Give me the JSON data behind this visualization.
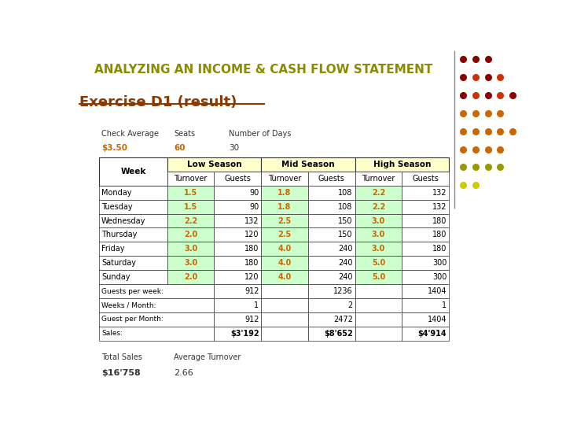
{
  "title": "ANALYZING AN INCOME & CASH FLOW STATEMENT",
  "subtitle": "Exercise D1 (result)",
  "title_color": "#8B8B00",
  "subtitle_color": "#8B3A00",
  "bg_color": "#FFFFFF",
  "check_avg_label": "Check Average",
  "check_avg_value": "$3.50",
  "seats_label": "Seats",
  "seats_value": "60",
  "num_days_label": "Number of Days",
  "num_days_value": "30",
  "total_sales_label": "Total Sales",
  "total_sales_value": "$16'758",
  "avg_turnover_label": "Average Turnover",
  "avg_turnover_value": "2.66",
  "seasons": [
    "Low Season",
    "Mid Season",
    "High Season"
  ],
  "season_header_bg": "#FFFFCC",
  "season_header_color": "#000000",
  "days": [
    "Monday",
    "Tuesday",
    "Wednesday",
    "Thursday",
    "Friday",
    "Saturday",
    "Sunday"
  ],
  "turnover_color": "#CC6600",
  "turnover_bg": "#CCFFCC",
  "table_data": {
    "Monday": {
      "low_t": "1.5",
      "low_g": "90",
      "mid_t": "1.8",
      "mid_g": "108",
      "high_t": "2.2",
      "high_g": "132"
    },
    "Tuesday": {
      "low_t": "1.5",
      "low_g": "90",
      "mid_t": "1.8",
      "mid_g": "108",
      "high_t": "2.2",
      "high_g": "132"
    },
    "Wednesday": {
      "low_t": "2.2",
      "low_g": "132",
      "mid_t": "2.5",
      "mid_g": "150",
      "high_t": "3.0",
      "high_g": "180"
    },
    "Thursday": {
      "low_t": "2.0",
      "low_g": "120",
      "mid_t": "2.5",
      "mid_g": "150",
      "high_t": "3.0",
      "high_g": "180"
    },
    "Friday": {
      "low_t": "3.0",
      "low_g": "180",
      "mid_t": "4.0",
      "mid_g": "240",
      "high_t": "3.0",
      "high_g": "180"
    },
    "Saturday": {
      "low_t": "3.0",
      "low_g": "180",
      "mid_t": "4.0",
      "mid_g": "240",
      "high_t": "5.0",
      "high_g": "300"
    },
    "Sunday": {
      "low_t": "2.0",
      "low_g": "120",
      "mid_t": "4.0",
      "mid_g": "240",
      "high_t": "5.0",
      "high_g": "300"
    }
  },
  "guests_per_week": {
    "low": "912",
    "mid": "1236",
    "high": "1404"
  },
  "weeks_per_month": {
    "low": "1",
    "mid": "2",
    "high": "1"
  },
  "guests_per_month": {
    "low": "912",
    "mid": "2472",
    "high": "1404"
  },
  "sales": {
    "low": "$3'192",
    "mid": "$8'652",
    "high": "$4'914"
  },
  "dot_grid": [
    [
      "#8B0000",
      "#8B0000",
      "#8B0000"
    ],
    [
      "#8B0000",
      "#CC3300",
      "#8B0000",
      "#CC3300"
    ],
    [
      "#8B0000",
      "#CC3300",
      "#8B0000",
      "#CC3300",
      "#8B0000"
    ],
    [
      "#CC6600",
      "#CC6600",
      "#CC6600",
      "#CC6600"
    ],
    [
      "#CC6600",
      "#CC6600",
      "#CC6600",
      "#CC6600",
      "#CC6600"
    ],
    [
      "#CC6600",
      "#CC6600",
      "#CC6600",
      "#CC6600"
    ],
    [
      "#999900",
      "#999900",
      "#999900",
      "#999900"
    ],
    [
      "#CCCC00",
      "#CCCC00"
    ]
  ]
}
